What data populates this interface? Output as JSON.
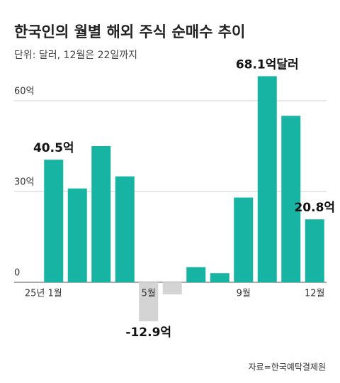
{
  "chart_data": {
    "type": "bar",
    "title": "한국인의 월별 해외 주식 순매수 추이",
    "subtitle": "단위: 달러, 12월은 22일까지",
    "source": "자료=한국예탁결제원",
    "categories": [
      "25년 1월",
      null,
      null,
      null,
      "5월",
      null,
      null,
      null,
      "9월",
      null,
      null,
      "12월"
    ],
    "values": [
      40.5,
      31,
      45,
      35,
      -12.9,
      -4,
      5,
      3,
      28,
      68.1,
      55,
      20.8
    ],
    "value_labels": [
      "40.5억",
      null,
      null,
      null,
      "-12.9억",
      null,
      null,
      null,
      null,
      "68.1억달러",
      null,
      "20.8억"
    ],
    "color": "#17b3a3",
    "negative_color": "#d4d4d4",
    "ylim": [
      -25,
      70
    ],
    "yticks": [
      0,
      {
        "value": 30,
        "label": "30억"
      },
      {
        "value": 60,
        "label": "60억"
      }
    ],
    "grid": true
  }
}
